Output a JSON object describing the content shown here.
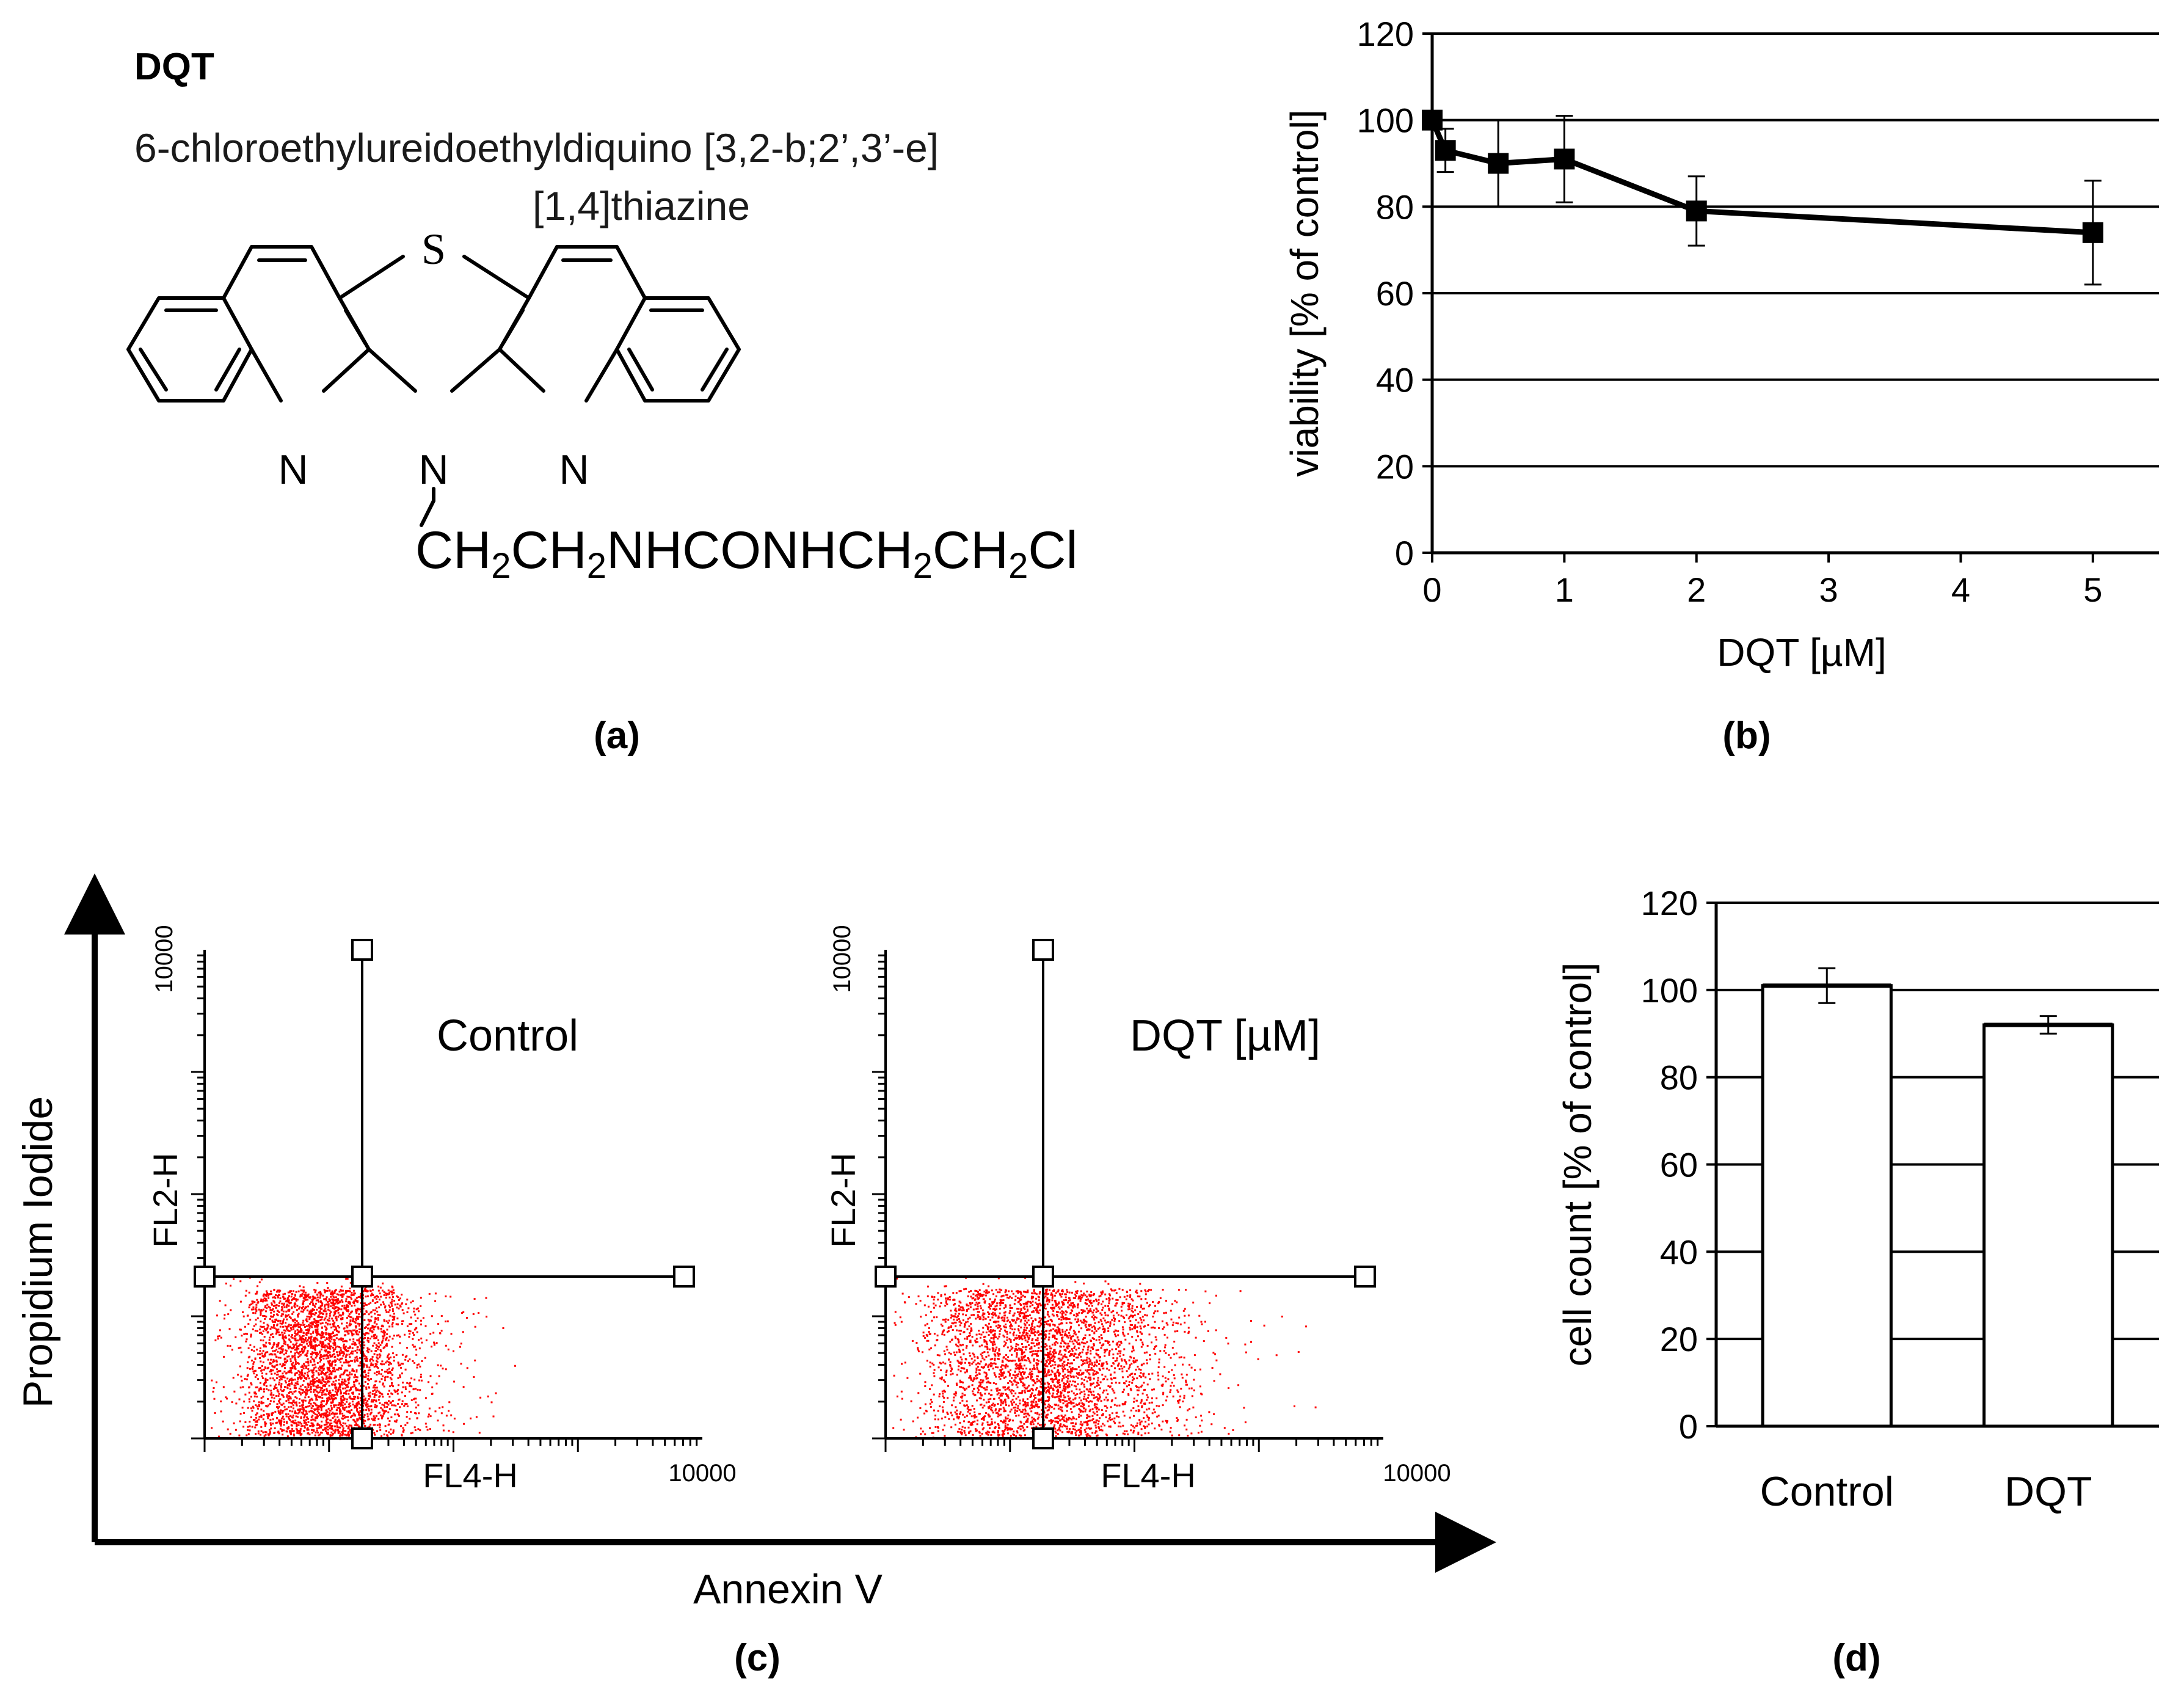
{
  "panel_a": {
    "compound_abbrev": "DQT",
    "name_line1": "6-chloroethylureidoethyldiquino [3,2-b;2’,3’-e]",
    "name_line2": "[1,4]thiazine",
    "atom_s": "S",
    "atom_n_left": "N",
    "atom_n_center": "N",
    "atom_n_right": "N",
    "substituent_parts": [
      "CH",
      "2",
      "CH",
      "2",
      "NHCONHCH",
      "2",
      "CH",
      "2",
      "Cl"
    ],
    "label": "(a)"
  },
  "panel_c": {
    "label": "(c)",
    "y_axis_title": "Propidium Iodide",
    "x_axis_title": "Annexin V",
    "plots": [
      {
        "title": "Control",
        "y_label": "FL2-H",
        "x_label": "FL4-H",
        "y_max_tick": "10000",
        "x_max_tick": "10000"
      },
      {
        "title": "DQT  [µM]",
        "y_label": "FL2-H",
        "x_label": "FL4-H",
        "y_max_tick": "10000",
        "x_max_tick": "10000"
      }
    ],
    "dot_color": "#ff0000"
  },
  "chart_data": [
    {
      "type": "line",
      "panel": "(b)",
      "label": "(b)",
      "title": "",
      "xlabel": "DQT  [µM]",
      "ylabel": "viability [% of control]",
      "x": [
        0,
        0.1,
        0.5,
        1,
        2,
        5
      ],
      "y": [
        100,
        93,
        90,
        91,
        79,
        74
      ],
      "error": [
        0,
        5,
        10,
        10,
        8,
        12
      ],
      "xlim": [
        0,
        5.5
      ],
      "ylim": [
        0,
        120
      ],
      "xticks": [
        "0",
        "1",
        "2",
        "3",
        "4",
        "5"
      ],
      "yticks": [
        "0",
        "20",
        "40",
        "60",
        "80",
        "100",
        "120"
      ],
      "grid": true,
      "marker": "square",
      "color": "#000000"
    },
    {
      "type": "bar",
      "panel": "(d)",
      "label": "(d)",
      "title": "",
      "xlabel": "",
      "ylabel": "cell count [% of control]",
      "categories": [
        "Control",
        "DQT"
      ],
      "values": [
        101,
        92
      ],
      "error": [
        4,
        2
      ],
      "ylim": [
        0,
        120
      ],
      "yticks": [
        "0",
        "20",
        "40",
        "60",
        "80",
        "100",
        "120"
      ],
      "grid": true,
      "bar_color": "#ffffff",
      "edge_color": "#000000"
    }
  ]
}
